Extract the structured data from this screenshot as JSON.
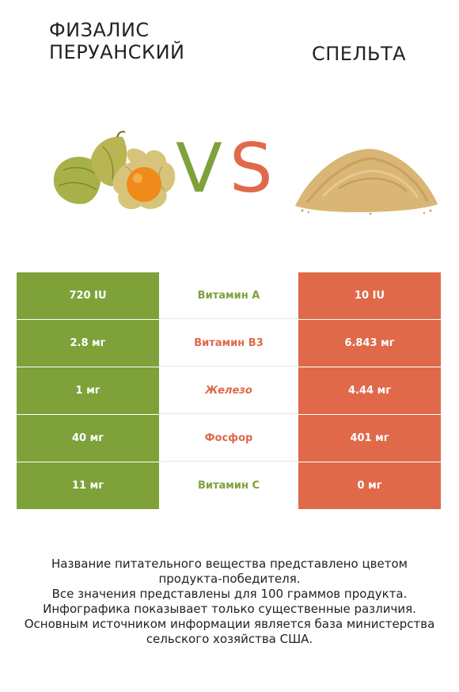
{
  "title_left": "Физалис перуанский",
  "title_right": "Спельта",
  "vs": {
    "v": "V",
    "s": "S"
  },
  "colors": {
    "left": "#7fa13a",
    "right": "#e0694a",
    "win_left": "#7fa13a",
    "win_right": "#e0694a"
  },
  "icons": {
    "left": "physalis-fruit-illustration",
    "right": "spelt-grain-pile-illustration"
  },
  "rows": [
    {
      "left": "720 IU",
      "label": "Витамин A",
      "right": "10 IU",
      "winner": "left"
    },
    {
      "left": "2.8 мг",
      "label": "Витамин B3",
      "right": "6.843 мг",
      "winner": "right"
    },
    {
      "left": "1 мг",
      "label": "Железо",
      "right": "4.44 мг",
      "winner": "right"
    },
    {
      "left": "40 мг",
      "label": "Фосфор",
      "right": "401 мг",
      "winner": "right"
    },
    {
      "left": "11 мг",
      "label": "Витамин C",
      "right": "0 мг",
      "winner": "left"
    }
  ],
  "footer": [
    "Название питательного вещества представлено цветом",
    "продукта-победителя.",
    "Все значения представлены для 100 граммов продукта.",
    "Инфографика показывает только существенные различия.",
    "Основным источником информации является база министерства",
    "сельского хозяйства США."
  ]
}
